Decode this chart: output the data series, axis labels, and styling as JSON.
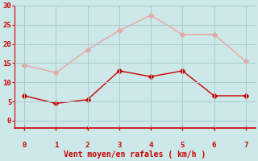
{
  "x": [
    0,
    1,
    2,
    3,
    4,
    5,
    6,
    7
  ],
  "y_rafales": [
    14.5,
    12.5,
    18.5,
    23.5,
    27.5,
    22.5,
    22.5,
    15.5
  ],
  "y_moyen": [
    6.5,
    4.5,
    5.5,
    13.0,
    11.5,
    13.0,
    6.5,
    6.5
  ],
  "color_rafales": "#f0a0a0",
  "color_moyen": "#cc0000",
  "xlabel": "Vent moyen/en rafales ( km/h )",
  "xlabel_color": "#cc0000",
  "xlabel_fontsize": 7,
  "bg_color": "#cce8e8",
  "grid_color": "#aacccc",
  "tick_color": "#cc0000",
  "axis_color": "#cc0000",
  "ylim": [
    -2,
    30
  ],
  "xlim": [
    -0.3,
    7.3
  ],
  "yticks": [
    0,
    5,
    10,
    15,
    20,
    25,
    30
  ],
  "xticks": [
    0,
    1,
    2,
    3,
    4,
    5,
    6,
    7
  ],
  "markersize": 3,
  "linewidth": 1.0
}
